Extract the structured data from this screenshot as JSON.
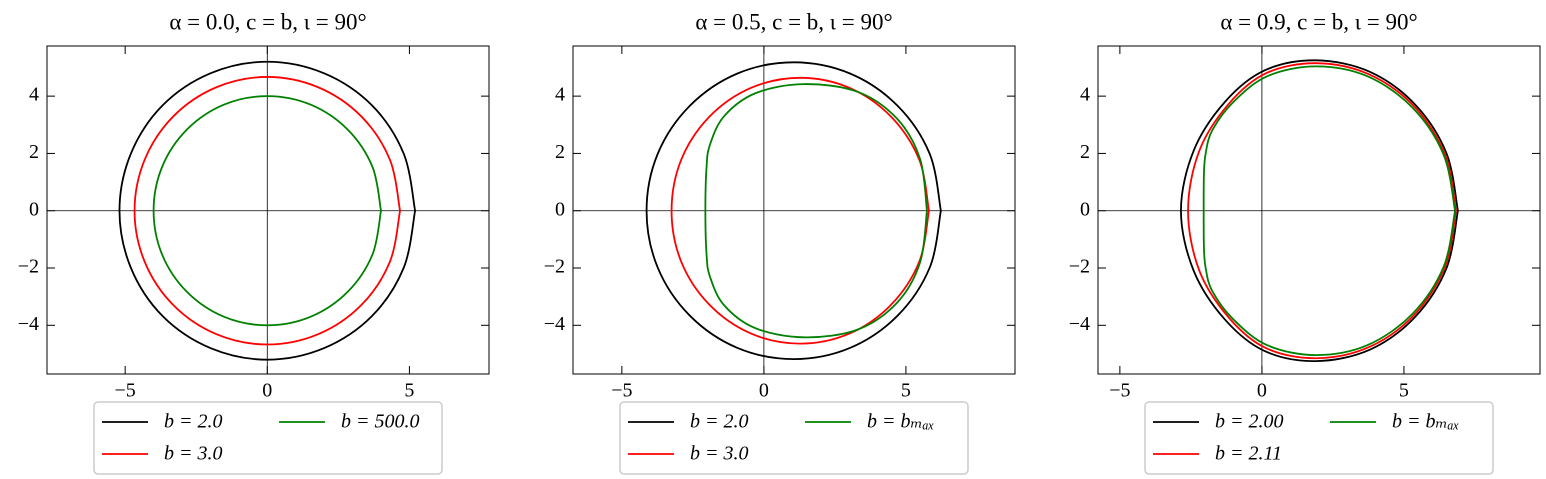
{
  "chart_data": [
    {
      "type": "line",
      "title": "α = 0.0,   c = b,   ι = 90°",
      "xlim": [
        -7.75,
        7.8
      ],
      "ylim": [
        -5.7,
        5.75
      ],
      "xticks": [
        {
          "value": -5,
          "label": "−5"
        },
        0,
        5
      ],
      "yticks": [
        {
          "value": -4,
          "label": "−4"
        },
        {
          "value": -2,
          "label": "−2"
        },
        0,
        2,
        4
      ],
      "axhline": 0,
      "axvline": 0,
      "legend": "lower center",
      "series": [
        {
          "name": "b = 2.0",
          "color": "#000000",
          "x": [
            5.2,
            4.8,
            3.68,
            1.99,
            0,
            -1.99,
            -3.68,
            -4.8,
            -5.2,
            -4.8,
            -3.68,
            -1.99,
            0,
            1.99,
            3.68,
            4.8,
            5.2
          ],
          "y": [
            0,
            1.99,
            3.68,
            4.8,
            5.2,
            4.8,
            3.68,
            1.99,
            0,
            -1.99,
            -3.68,
            -4.8,
            -5.2,
            -4.8,
            -3.68,
            -1.99,
            0
          ]
        },
        {
          "name": "b = 3.0",
          "color": "#ff0000",
          "x": [
            4.67,
            4.31,
            3.3,
            1.79,
            0,
            -1.79,
            -3.3,
            -4.31,
            -4.67,
            -4.31,
            -3.3,
            -1.79,
            0,
            1.79,
            3.3,
            4.31,
            4.67
          ],
          "y": [
            0,
            1.79,
            3.3,
            4.31,
            4.67,
            4.31,
            3.3,
            1.79,
            0,
            -1.79,
            -3.3,
            -4.31,
            -4.67,
            -4.31,
            -3.3,
            -1.79,
            0
          ]
        },
        {
          "name": "b = 500.0",
          "color": "#008000",
          "x": [
            4.0,
            3.7,
            2.83,
            1.53,
            0,
            -1.53,
            -2.83,
            -3.7,
            -4.0,
            -3.7,
            -2.83,
            -1.53,
            0,
            1.53,
            2.83,
            3.7,
            4.0
          ],
          "y": [
            0,
            1.53,
            2.83,
            3.7,
            4.0,
            3.7,
            2.83,
            1.53,
            0,
            -1.53,
            -2.83,
            -3.7,
            -4.0,
            -3.7,
            -2.83,
            -1.53,
            0
          ]
        }
      ]
    },
    {
      "type": "line",
      "title": "α = 0.5,   c = b,   ι = 90°",
      "xlim": [
        -6.72,
        8.84
      ],
      "ylim": [
        -5.7,
        5.75
      ],
      "xticks": [
        {
          "value": -5,
          "label": "−5"
        },
        0,
        5
      ],
      "yticks": [
        {
          "value": -4,
          "label": "−4"
        },
        {
          "value": -2,
          "label": "−2"
        },
        0,
        2,
        4
      ],
      "axhline": 0,
      "axvline": 0,
      "legend": "lower center",
      "series": [
        {
          "name": "b = 2.0",
          "color": "#000000",
          "x": [
            6.23,
            5.84,
            4.71,
            3.03,
            1.05,
            -0.93,
            -2.61,
            -3.74,
            -4.13,
            -3.74,
            -2.61,
            -0.93,
            1.05,
            3.03,
            4.71,
            5.84,
            6.23
          ],
          "y": [
            0,
            1.98,
            3.66,
            4.79,
            5.18,
            4.79,
            3.66,
            1.98,
            0,
            -1.98,
            -3.66,
            -4.79,
            -5.18,
            -4.79,
            -3.66,
            -1.98,
            0
          ]
        },
        {
          "name": "b = 3.0",
          "color": "#ff0000",
          "x": [
            5.81,
            5.47,
            4.48,
            3.01,
            1.28,
            -0.45,
            -1.92,
            -2.91,
            -3.25,
            -2.91,
            -1.92,
            -0.45,
            1.28,
            3.01,
            4.48,
            5.47,
            5.81
          ],
          "y": [
            0,
            1.78,
            3.28,
            4.29,
            4.64,
            4.29,
            3.28,
            1.78,
            0,
            -1.78,
            -3.28,
            -4.29,
            -4.64,
            -4.29,
            -3.28,
            -1.78,
            0
          ]
        },
        {
          "name": "b = bₘₐₓ",
          "color": "#008000",
          "x": [
            5.74,
            5.5,
            4.7,
            3.3,
            1.4,
            -0.3,
            -1.4,
            -1.9,
            -2.02,
            -2.06,
            -2.02,
            -1.9,
            -1.4,
            -0.3,
            1.4,
            3.3,
            4.7,
            5.5,
            5.74
          ],
          "y": [
            0,
            1.8,
            3.2,
            4.15,
            4.42,
            4.1,
            3.3,
            2.3,
            1.5,
            0,
            -1.5,
            -2.3,
            -3.3,
            -4.1,
            -4.42,
            -4.15,
            -3.2,
            -1.8,
            0
          ]
        }
      ]
    },
    {
      "type": "line",
      "title": "α = 0.9,   c = b,   ι = 90°",
      "xlim": [
        -5.77,
        9.79
      ],
      "ylim": [
        -5.7,
        5.75
      ],
      "xticks": [
        {
          "value": -5,
          "label": "−5"
        },
        0,
        5
      ],
      "yticks": [
        {
          "value": -4,
          "label": "−4"
        },
        {
          "value": -2,
          "label": "−2"
        },
        0,
        2,
        4
      ],
      "axhline": 0,
      "axvline": 0,
      "legend": "lower center",
      "series": [
        {
          "name": "b = 2.00",
          "color": "#000000",
          "x": [
            6.9,
            6.5,
            5.4,
            3.8,
            1.9,
            0.1,
            -1.3,
            -2.4,
            -2.85,
            -2.4,
            -1.3,
            0.1,
            1.9,
            3.8,
            5.4,
            6.5,
            6.9
          ],
          "y": [
            0,
            2.0,
            3.7,
            4.85,
            5.25,
            4.9,
            3.8,
            2.1,
            0,
            -2.1,
            -3.8,
            -4.9,
            -5.25,
            -4.85,
            -3.7,
            -2.0,
            0
          ]
        },
        {
          "name": "b = 2.11",
          "color": "#ff0000",
          "x": [
            6.83,
            6.45,
            5.35,
            3.75,
            1.9,
            0.15,
            -1.15,
            -2.2,
            -2.6,
            -2.2,
            -1.15,
            0.15,
            1.9,
            3.75,
            5.35,
            6.45,
            6.83
          ],
          "y": [
            0,
            1.95,
            3.65,
            4.77,
            5.15,
            4.8,
            3.75,
            2.1,
            0,
            -2.1,
            -3.75,
            -4.8,
            -5.15,
            -4.77,
            -3.65,
            -1.95,
            0
          ]
        },
        {
          "name": "b = bₘₐₓ",
          "color": "#008000",
          "x": [
            6.8,
            6.4,
            5.3,
            3.7,
            1.9,
            0.2,
            -1.0,
            -1.75,
            -1.98,
            -2.04,
            -2.05,
            -2.04,
            -1.98,
            -1.75,
            -1.0,
            0.2,
            1.9,
            3.7,
            5.3,
            6.4,
            6.8
          ],
          "y": [
            0,
            1.95,
            3.6,
            4.7,
            5.04,
            4.7,
            3.8,
            2.8,
            2.0,
            1.3,
            0,
            -1.3,
            -2.0,
            -2.8,
            -3.8,
            -4.7,
            -5.04,
            -4.7,
            -3.6,
            -1.95,
            0
          ]
        }
      ]
    }
  ]
}
